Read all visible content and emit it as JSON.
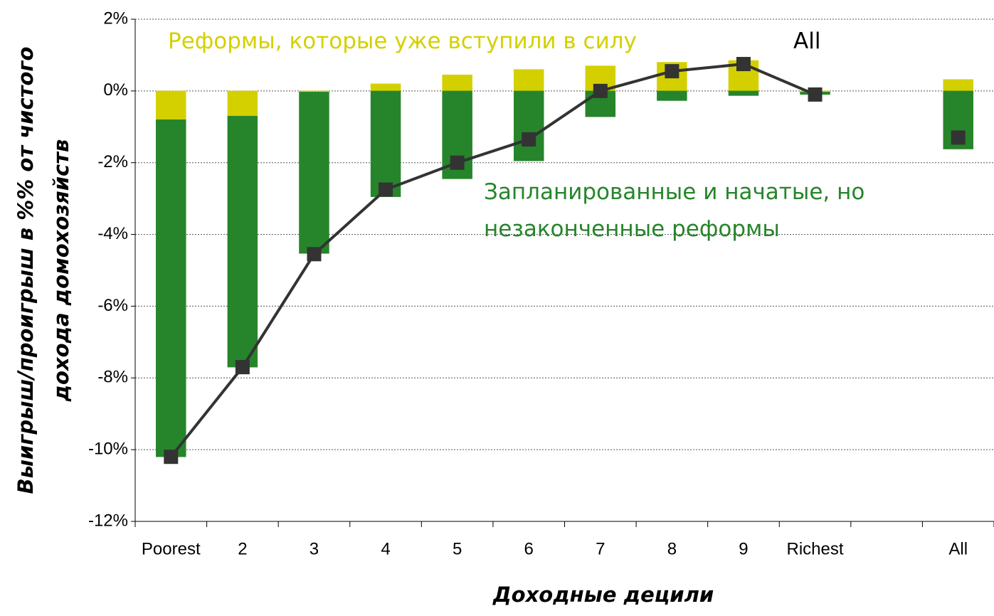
{
  "chart_data": {
    "type": "bar",
    "stacked": true,
    "categories": [
      "Poorest",
      "2",
      "3",
      "4",
      "5",
      "6",
      "7",
      "8",
      "9",
      "Richest",
      null,
      "All"
    ],
    "series": [
      {
        "name": "Реформы, которые уже вступили в силу",
        "type": "bar",
        "color": "#d4d000",
        "values": [
          -0.8,
          -0.7,
          -0.03,
          0.2,
          0.45,
          0.6,
          0.7,
          0.8,
          0.85,
          -0.03,
          null,
          0.32
        ]
      },
      {
        "name": "Запланированные и начатые, но незаконченные реформы",
        "type": "bar",
        "color": "#26852a",
        "values": [
          -9.4,
          -7.0,
          -4.5,
          -2.95,
          -2.45,
          -1.95,
          -0.72,
          -0.27,
          -0.13,
          -0.07,
          null,
          -1.62
        ]
      },
      {
        "name": "All",
        "type": "line",
        "color": "#333333",
        "values": [
          -10.2,
          -7.7,
          -4.55,
          -2.75,
          -2.0,
          -1.35,
          0.0,
          0.55,
          0.75,
          -0.1,
          null,
          -1.3
        ]
      }
    ],
    "ylim": [
      -12,
      2
    ],
    "yticks": [
      {
        "value": -12,
        "label": "-12%"
      },
      {
        "value": -10,
        "label": "-10%"
      },
      {
        "value": -8,
        "label": "-8%"
      },
      {
        "value": -6,
        "label": "-6%"
      },
      {
        "value": -4,
        "label": "-4%"
      },
      {
        "value": -2,
        "label": "-2%"
      },
      {
        "value": 0,
        "label": "0%"
      },
      {
        "value": 2,
        "label": "2%"
      }
    ],
    "ylabel": [
      "Выигрыш/проигрыш в %% от чистого",
      "дохода домохозяйств"
    ],
    "xlabel": "Доходные децили",
    "grid": true
  }
}
